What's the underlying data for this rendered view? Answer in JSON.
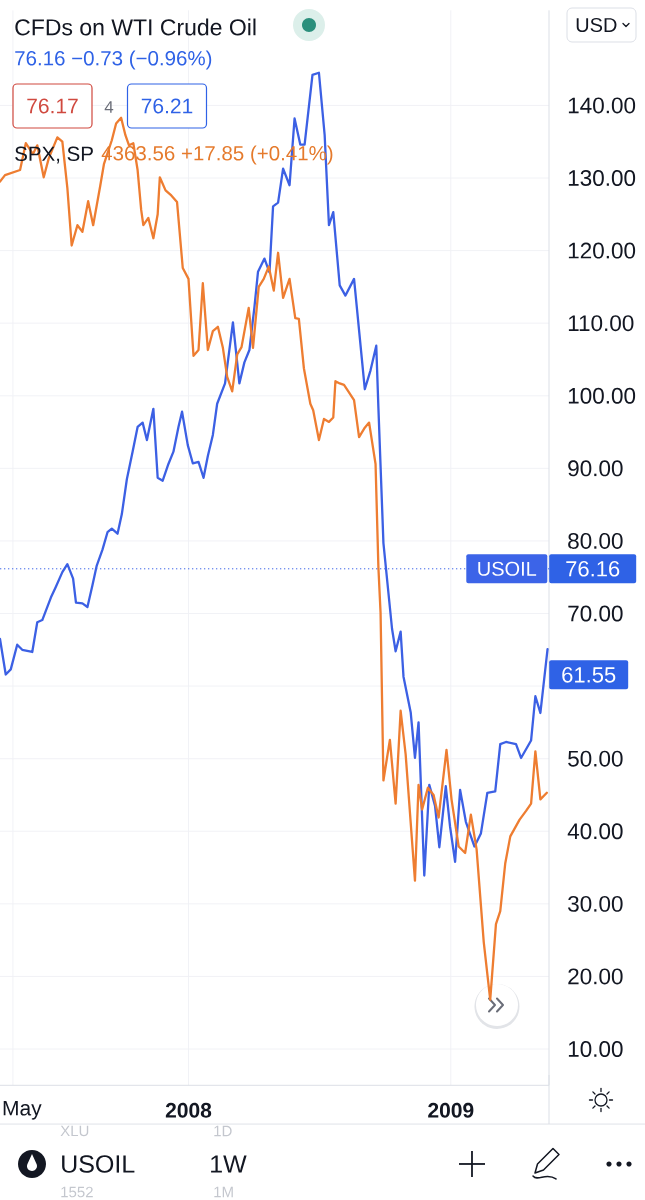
{
  "chart_data": {
    "type": "line",
    "title": "CFDs on WTI Crude Oil",
    "subtitle": "76.16 −0.73 (−0.96%)",
    "annotations": [
      "76.17",
      "4",
      "76.21",
      "SPX, SP",
      "4363.56 +17.85 (+0.41%)",
      "USD",
      {
        "text": "76.16",
        "x": "2009-05-18",
        "y": 76.16
      },
      {
        "text": "61.55",
        "x": "2009-05-18",
        "y": 61.55
      },
      "USOIL",
      "1W",
      "XLU",
      "1D",
      "1552",
      "1M"
    ],
    "xlim": [
      "2007-04-13",
      "2009-05-18"
    ],
    "xticks": [
      {
        "value": "2007-05-01",
        "label": "May"
      },
      {
        "value": "2008-01-01",
        "label": "2008"
      },
      {
        "value": "2009-01-01",
        "label": "2009"
      }
    ],
    "ylim": [
      5.0,
      153.1
    ],
    "yticks": [
      {
        "value": 10,
        "label": "10.00"
      },
      {
        "value": 20,
        "label": "20.00"
      },
      {
        "value": 30,
        "label": "30.00"
      },
      {
        "value": 40,
        "label": "40.00"
      },
      {
        "value": 50,
        "label": "50.00"
      },
      {
        "value": 60,
        "label": null
      },
      {
        "value": 70,
        "label": "70.00"
      },
      {
        "value": 80,
        "label": "80.00"
      },
      {
        "value": 90,
        "label": "90.00"
      },
      {
        "value": 100,
        "label": "100.00"
      },
      {
        "value": 110,
        "label": "110.00"
      },
      {
        "value": 120,
        "label": "120.00"
      },
      {
        "value": 130,
        "label": "130.00"
      },
      {
        "value": 140,
        "label": "140.00"
      }
    ],
    "grid": true,
    "ref_lines": [
      {
        "axis": "y",
        "value": 76.16,
        "label": "USOIL",
        "color": "#3c64e8",
        "line_style": "dotted"
      }
    ],
    "series": [
      {
        "color": "#3c60e4",
        "x": [
          "2007-04-13",
          "2007-04-21",
          "2007-04-28",
          "2007-05-07",
          "2007-05-14",
          "2007-05-28",
          "2007-06-04",
          "2007-06-11",
          "2007-06-23",
          "2007-06-30",
          "2007-07-09",
          "2007-07-16",
          "2007-07-24",
          "2007-07-28",
          "2007-08-06",
          "2007-08-13",
          "2007-08-20",
          "2007-08-26",
          "2007-09-03",
          "2007-09-10",
          "2007-09-16",
          "2007-09-24",
          "2007-09-30",
          "2007-10-07",
          "2007-10-15",
          "2007-10-22",
          "2007-10-29",
          "2007-11-04",
          "2007-11-13",
          "2007-11-19",
          "2007-11-26",
          "2007-12-04",
          "2007-12-11",
          "2007-12-18",
          "2007-12-23",
          "2007-12-31",
          "2008-01-07",
          "2008-01-15",
          "2008-01-22",
          "2008-01-28",
          "2008-02-04",
          "2008-02-10",
          "2008-02-21",
          "2008-03-03",
          "2008-03-12",
          "2008-03-19",
          "2008-03-26",
          "2008-04-02",
          "2008-04-07",
          "2008-04-16",
          "2008-04-23",
          "2008-04-28",
          "2008-05-05",
          "2008-05-12",
          "2008-05-21",
          "2008-05-28",
          "2008-06-05",
          "2008-06-11",
          "2008-06-22",
          "2008-07-01",
          "2008-07-09",
          "2008-07-15",
          "2008-07-21",
          "2008-07-30",
          "2008-08-07",
          "2008-08-19",
          "2008-09-03",
          "2008-09-11",
          "2008-09-19",
          "2008-09-22",
          "2008-09-29",
          "2008-10-11",
          "2008-10-16",
          "2008-10-23",
          "2008-10-27",
          "2008-11-06",
          "2008-11-12",
          "2008-11-17",
          "2008-11-25",
          "2008-12-02",
          "2008-12-10",
          "2008-12-16",
          "2008-12-25",
          "2008-12-31",
          "2009-01-07",
          "2009-01-14",
          "2009-01-22",
          "2009-02-03",
          "2009-02-12",
          "2009-02-21",
          "2009-03-04",
          "2009-03-11",
          "2009-03-19",
          "2009-04-02",
          "2009-04-09",
          "2009-04-16",
          "2009-04-23",
          "2009-04-29",
          "2009-05-06",
          "2009-05-16"
        ],
        "values": [
          66.5,
          61.6,
          62.3,
          65.7,
          65.0,
          64.7,
          68.8,
          69.1,
          72.2,
          73.7,
          75.7,
          76.8,
          74.8,
          71.5,
          71.4,
          70.9,
          73.9,
          76.6,
          78.8,
          81.2,
          81.7,
          81.0,
          83.7,
          88.5,
          92.3,
          95.7,
          96.3,
          93.9,
          98.2,
          88.7,
          88.3,
          90.6,
          92.3,
          95.7,
          97.8,
          93.2,
          90.7,
          90.9,
          88.7,
          91.7,
          94.6,
          98.9,
          101.7,
          110.1,
          101.7,
          104.6,
          106.3,
          112.2,
          117.1,
          118.9,
          117.0,
          126.1,
          126.6,
          131.3,
          129.0,
          138.2,
          134.6,
          134.6,
          144.2,
          144.5,
          135.9,
          123.5,
          125.3,
          115.2,
          113.8,
          116.1,
          100.9,
          103.5,
          106.9,
          98.3,
          79.7,
          67.9,
          64.8,
          67.5,
          61.3,
          56.4,
          50.1,
          55.0,
          33.9,
          46.4,
          43.5,
          37.8,
          46.2,
          40.6,
          35.8,
          45.7,
          41.3,
          37.9,
          39.7,
          45.3,
          45.5,
          52.0,
          52.3,
          52.0,
          50.1,
          51.3,
          52.5,
          58.6,
          56.3,
          65.1
        ]
      },
      {
        "color": "#ee7d31",
        "x": [
          "2007-04-13",
          "2007-04-20",
          "2007-05-11",
          "2007-05-19",
          "2007-05-29",
          "2007-06-04",
          "2007-06-13",
          "2007-06-20",
          "2007-07-02",
          "2007-07-09",
          "2007-07-16",
          "2007-07-22",
          "2007-07-30",
          "2007-08-06",
          "2007-08-14",
          "2007-08-21",
          "2007-08-31",
          "2007-09-05",
          "2007-09-16",
          "2007-09-22",
          "2007-09-29",
          "2007-10-05",
          "2007-10-10",
          "2007-10-16",
          "2007-10-22",
          "2007-10-27",
          "2007-10-30",
          "2007-11-06",
          "2007-11-13",
          "2007-11-19",
          "2007-11-22",
          "2007-11-30",
          "2007-12-08",
          "2007-12-16",
          "2007-12-24",
          "2008-01-01",
          "2008-01-08",
          "2008-01-15",
          "2008-01-21",
          "2008-01-28",
          "2008-02-04",
          "2008-02-11",
          "2008-02-18",
          "2008-02-24",
          "2008-03-02",
          "2008-03-09",
          "2008-03-15",
          "2008-03-25",
          "2008-03-31",
          "2008-04-08",
          "2008-04-15",
          "2008-04-22",
          "2008-04-29",
          "2008-05-05",
          "2008-05-12",
          "2008-05-21",
          "2008-05-29",
          "2008-06-03",
          "2008-06-10",
          "2008-06-19",
          "2008-06-23",
          "2008-07-01",
          "2008-07-08",
          "2008-07-15",
          "2008-07-21",
          "2008-07-24",
          "2008-07-30",
          "2008-08-05",
          "2008-08-11",
          "2008-08-19",
          "2008-08-26",
          "2008-09-03",
          "2008-09-09",
          "2008-09-18",
          "2008-09-22",
          "2008-09-25",
          "2008-09-29",
          "2008-10-08",
          "2008-10-16",
          "2008-10-23",
          "2008-10-30",
          "2008-11-12",
          "2008-11-17",
          "2008-11-22",
          "2008-11-30",
          "2008-12-08",
          "2008-12-15",
          "2008-12-26",
          "2009-01-02",
          "2009-01-12",
          "2009-01-21",
          "2009-01-29",
          "2009-02-06",
          "2009-02-16",
          "2009-02-25",
          "2009-03-05",
          "2009-03-11",
          "2009-03-18",
          "2009-03-25",
          "2009-04-07",
          "2009-04-16",
          "2009-04-23",
          "2009-04-29",
          "2009-05-06",
          "2009-05-15"
        ],
        "values": [
          129.5,
          130.4,
          131.1,
          134.8,
          133.3,
          134.5,
          130.1,
          132.7,
          135.6,
          135.0,
          128.6,
          120.7,
          123.5,
          122.6,
          126.8,
          123.5,
          129.0,
          131.9,
          135.2,
          137.5,
          138.3,
          135.9,
          134.5,
          134.8,
          131.1,
          125.6,
          123.5,
          124.5,
          121.7,
          125.0,
          130.1,
          128.3,
          127.6,
          126.7,
          117.6,
          116.1,
          105.5,
          106.3,
          115.5,
          106.3,
          108.9,
          109.5,
          106.6,
          102.6,
          100.6,
          105.7,
          106.7,
          112.1,
          106.6,
          115.0,
          116.1,
          117.8,
          114.5,
          119.7,
          113.5,
          116.1,
          110.7,
          110.6,
          103.8,
          98.9,
          98.0,
          93.9,
          96.8,
          96.4,
          97.0,
          102.0,
          101.7,
          101.5,
          100.6,
          99.4,
          94.3,
          95.6,
          96.3,
          90.6,
          76.3,
          70.1,
          47.0,
          52.6,
          43.8,
          56.6,
          50.6,
          33.2,
          46.4,
          43.0,
          46.0,
          45.0,
          41.9,
          51.2,
          44.4,
          37.9,
          37.0,
          42.3,
          37.5,
          24.7,
          16.8,
          27.2,
          29.0,
          35.6,
          39.3,
          41.6,
          42.8,
          43.8,
          51.0,
          44.4,
          45.3
        ]
      }
    ]
  }
}
